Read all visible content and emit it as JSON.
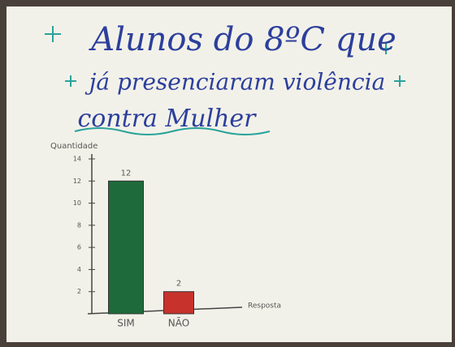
{
  "chart_data": {
    "type": "bar",
    "title": [
      "Alunos do 8ºC que",
      "já presenciaram violência",
      "contra Mulher"
    ],
    "y_label": "Quantidade",
    "x_label": "Resposta",
    "categories": [
      "SIM",
      "NÃO"
    ],
    "values": [
      12,
      2
    ],
    "colors": [
      "#1f6a3b",
      "#c8322c"
    ],
    "ylim": [
      0,
      14
    ],
    "yticks": [
      2,
      4,
      6,
      8,
      10,
      12,
      14
    ]
  }
}
